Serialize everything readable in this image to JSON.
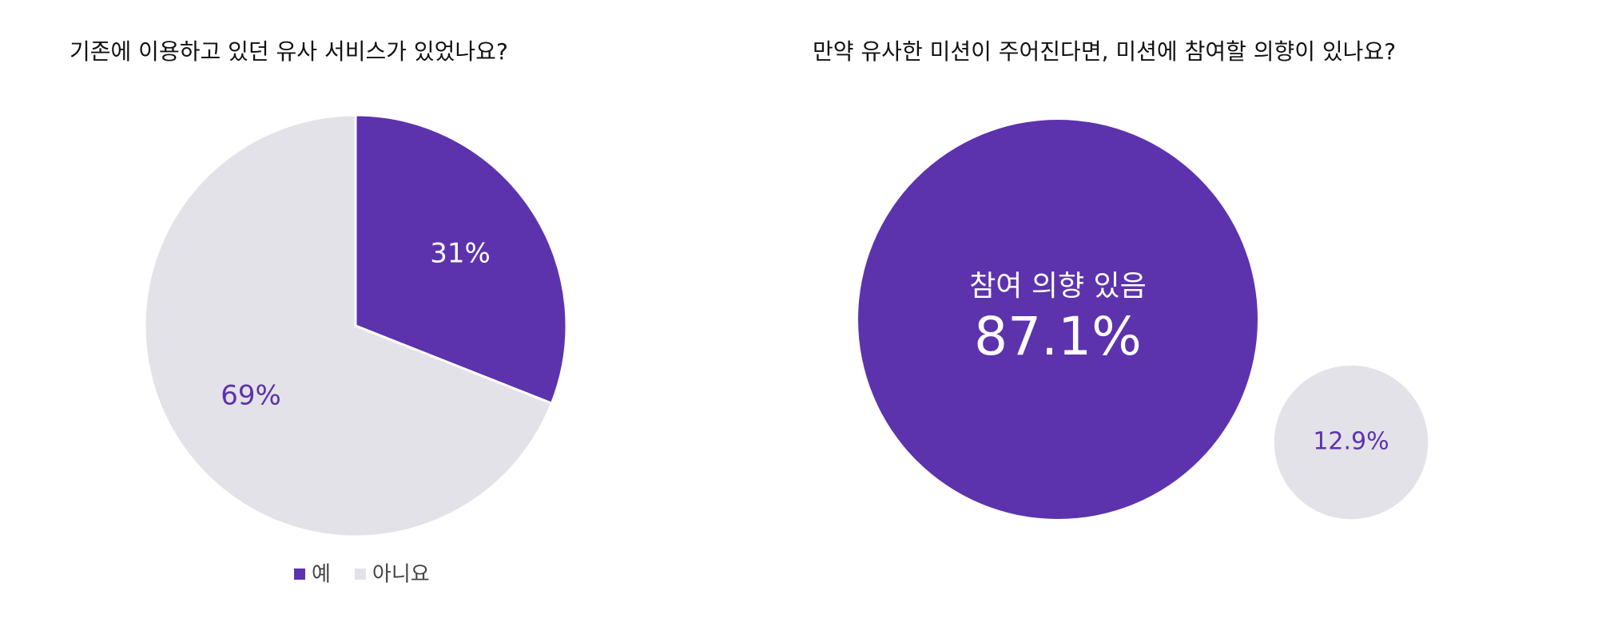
{
  "chart_data": [
    {
      "type": "pie",
      "title": "기존에 이용하고 있던 유사 서비스가 있었나요?",
      "categories": [
        "예",
        "아니요"
      ],
      "values": [
        31,
        69
      ],
      "value_labels": [
        "31%",
        "69%"
      ],
      "colors": [
        "#5c33ad",
        "#e3e2e8"
      ],
      "label_colors": [
        "#ffffff",
        "#5c33ad"
      ],
      "legend": "bottom"
    },
    {
      "type": "bubble",
      "title": "만약 유사한 미션이 주어진다면, 미션에 참여할 의향이 있나요?",
      "categories": [
        "참여 의향 있음",
        null
      ],
      "values": [
        87.1,
        12.9
      ],
      "value_labels": [
        "87.1%",
        "12.9%"
      ],
      "colors": [
        "#5c33ad",
        "#e3e2e8"
      ],
      "label_colors": [
        "#ffffff",
        "#5c33ad"
      ]
    }
  ]
}
